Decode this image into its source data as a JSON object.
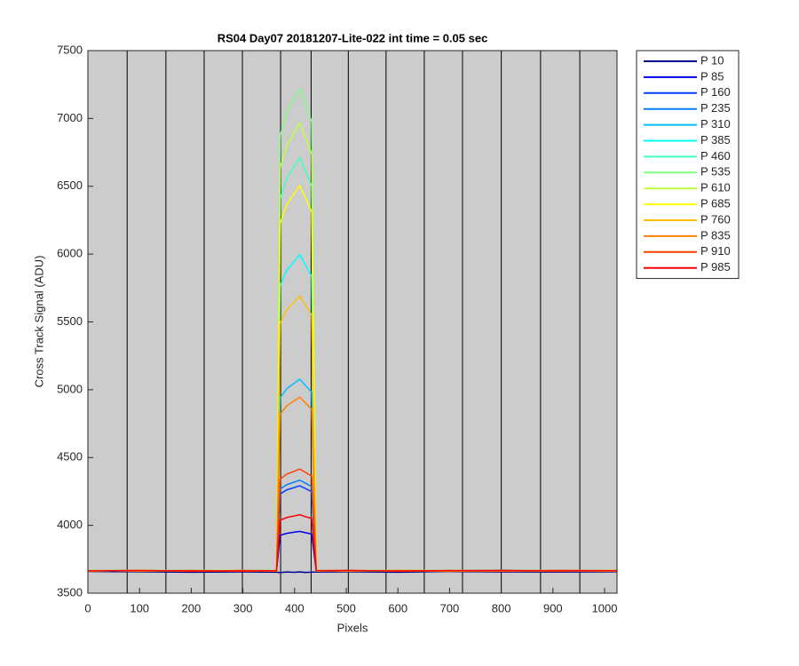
{
  "chart_data": {
    "type": "line",
    "title": "RS04 Day07 20181207-Lite-022 int time = 0.05 sec",
    "x_label": "Pixels",
    "y_label": "Cross Track Signal (ADU)",
    "xlim": [
      0,
      1024
    ],
    "ylim": [
      3500,
      7500
    ],
    "xticks": [
      0,
      100,
      200,
      300,
      400,
      500,
      600,
      700,
      800,
      900,
      1000
    ],
    "yticks": [
      3500,
      4000,
      4500,
      5000,
      5500,
      6000,
      6500,
      7000,
      7500
    ],
    "vertical_lines": [
      76,
      151,
      225,
      299,
      373,
      432,
      504,
      577,
      651,
      725,
      800,
      876,
      952
    ],
    "background": "#cccccc",
    "legend": "outside-right",
    "x": [
      0,
      100,
      200,
      300,
      365,
      372,
      385,
      400,
      410,
      420,
      433,
      442,
      500,
      600,
      700,
      800,
      900,
      1024
    ],
    "series": [
      {
        "name": "P 10",
        "color": "#00008f",
        "values": [
          3660,
          3658,
          3655,
          3657,
          3655,
          3652,
          3656,
          3654,
          3657,
          3653,
          3655,
          3656,
          3658,
          3655,
          3660,
          3657,
          3656,
          3658
        ]
      },
      {
        "name": "P 85",
        "color": "#0000e6",
        "values": [
          3665,
          3668,
          3662,
          3667,
          3664,
          3927,
          3941,
          3950,
          3956,
          3947,
          3936,
          3666,
          3663,
          3668,
          3664,
          3667,
          3662,
          3665
        ]
      },
      {
        "name": "P 160",
        "color": "#0040ff",
        "values": [
          3666,
          3663,
          3668,
          3664,
          3667,
          4231,
          4262,
          4280,
          4292,
          4274,
          4249,
          3664,
          3667,
          3663,
          3669,
          3664,
          3666,
          3663
        ]
      },
      {
        "name": "P 235",
        "color": "#0080ff",
        "values": [
          3664,
          3667,
          3663,
          3669,
          3665,
          4268,
          4300,
          4320,
          4333,
          4313,
          4287,
          3667,
          3664,
          3668,
          3663,
          3670,
          3665,
          3664
        ]
      },
      {
        "name": "P 310",
        "color": "#00bfff",
        "values": [
          3667,
          3664,
          3669,
          3663,
          3666,
          4939,
          5008,
          5050,
          5078,
          5036,
          4981,
          3665,
          3669,
          3664,
          3667,
          3663,
          3668,
          3666
        ]
      },
      {
        "name": "P 385",
        "color": "#00ffff",
        "values": [
          3663,
          3668,
          3665,
          3667,
          3664,
          5767,
          5881,
          5950,
          5996,
          5927,
          5836,
          3668,
          3663,
          3667,
          3665,
          3668,
          3663,
          3667
        ]
      },
      {
        "name": "P 460",
        "color": "#40ffbf",
        "values": [
          3668,
          3665,
          3667,
          3662,
          3668,
          6411,
          6560,
          6650,
          6710,
          6620,
          6501,
          3663,
          3666,
          3669,
          3664,
          3666,
          3667,
          3662
        ]
      },
      {
        "name": "P 535",
        "color": "#80ff80",
        "values": [
          3665,
          3669,
          3663,
          3666,
          3663,
          6871,
          7045,
          7150,
          7220,
          7115,
          6976,
          3667,
          3665,
          3663,
          3668,
          3664,
          3669,
          3665
        ]
      },
      {
        "name": "P 610",
        "color": "#bfff40",
        "values": [
          3664,
          3666,
          3668,
          3665,
          3667,
          6641,
          6803,
          6900,
          6965,
          6868,
          6738,
          3664,
          3668,
          3666,
          3663,
          3667,
          3664,
          3668
        ]
      },
      {
        "name": "P 685",
        "color": "#ffff00",
        "values": [
          3667,
          3663,
          3665,
          3668,
          3664,
          6227,
          6366,
          6450,
          6506,
          6422,
          6311,
          3666,
          3663,
          3668,
          3666,
          3662,
          3666,
          3664
        ]
      },
      {
        "name": "P 760",
        "color": "#ffbf00",
        "values": [
          3663,
          3667,
          3664,
          3666,
          3668,
          5491,
          5590,
          5650,
          5690,
          5630,
          5551,
          3668,
          3666,
          3664,
          3667,
          3665,
          3663,
          3667
        ]
      },
      {
        "name": "P 835",
        "color": "#ff8000",
        "values": [
          3666,
          3664,
          3667,
          3663,
          3665,
          4820,
          4882,
          4920,
          4945,
          4907,
          4857,
          3663,
          3667,
          3665,
          3662,
          3668,
          3665,
          3663
        ]
      },
      {
        "name": "P 910",
        "color": "#ff4000",
        "values": [
          3665,
          3668,
          3662,
          3667,
          3663,
          4341,
          4378,
          4400,
          4415,
          4393,
          4363,
          3667,
          3664,
          3667,
          3665,
          3663,
          3668,
          3666
        ]
      },
      {
        "name": "P 985",
        "color": "#ff0000",
        "values": [
          3664,
          3666,
          3665,
          3663,
          3666,
          4038,
          4058,
          4070,
          4078,
          4066,
          4050,
          3665,
          3668,
          3663,
          3666,
          3667,
          3664,
          3665
        ]
      }
    ]
  }
}
